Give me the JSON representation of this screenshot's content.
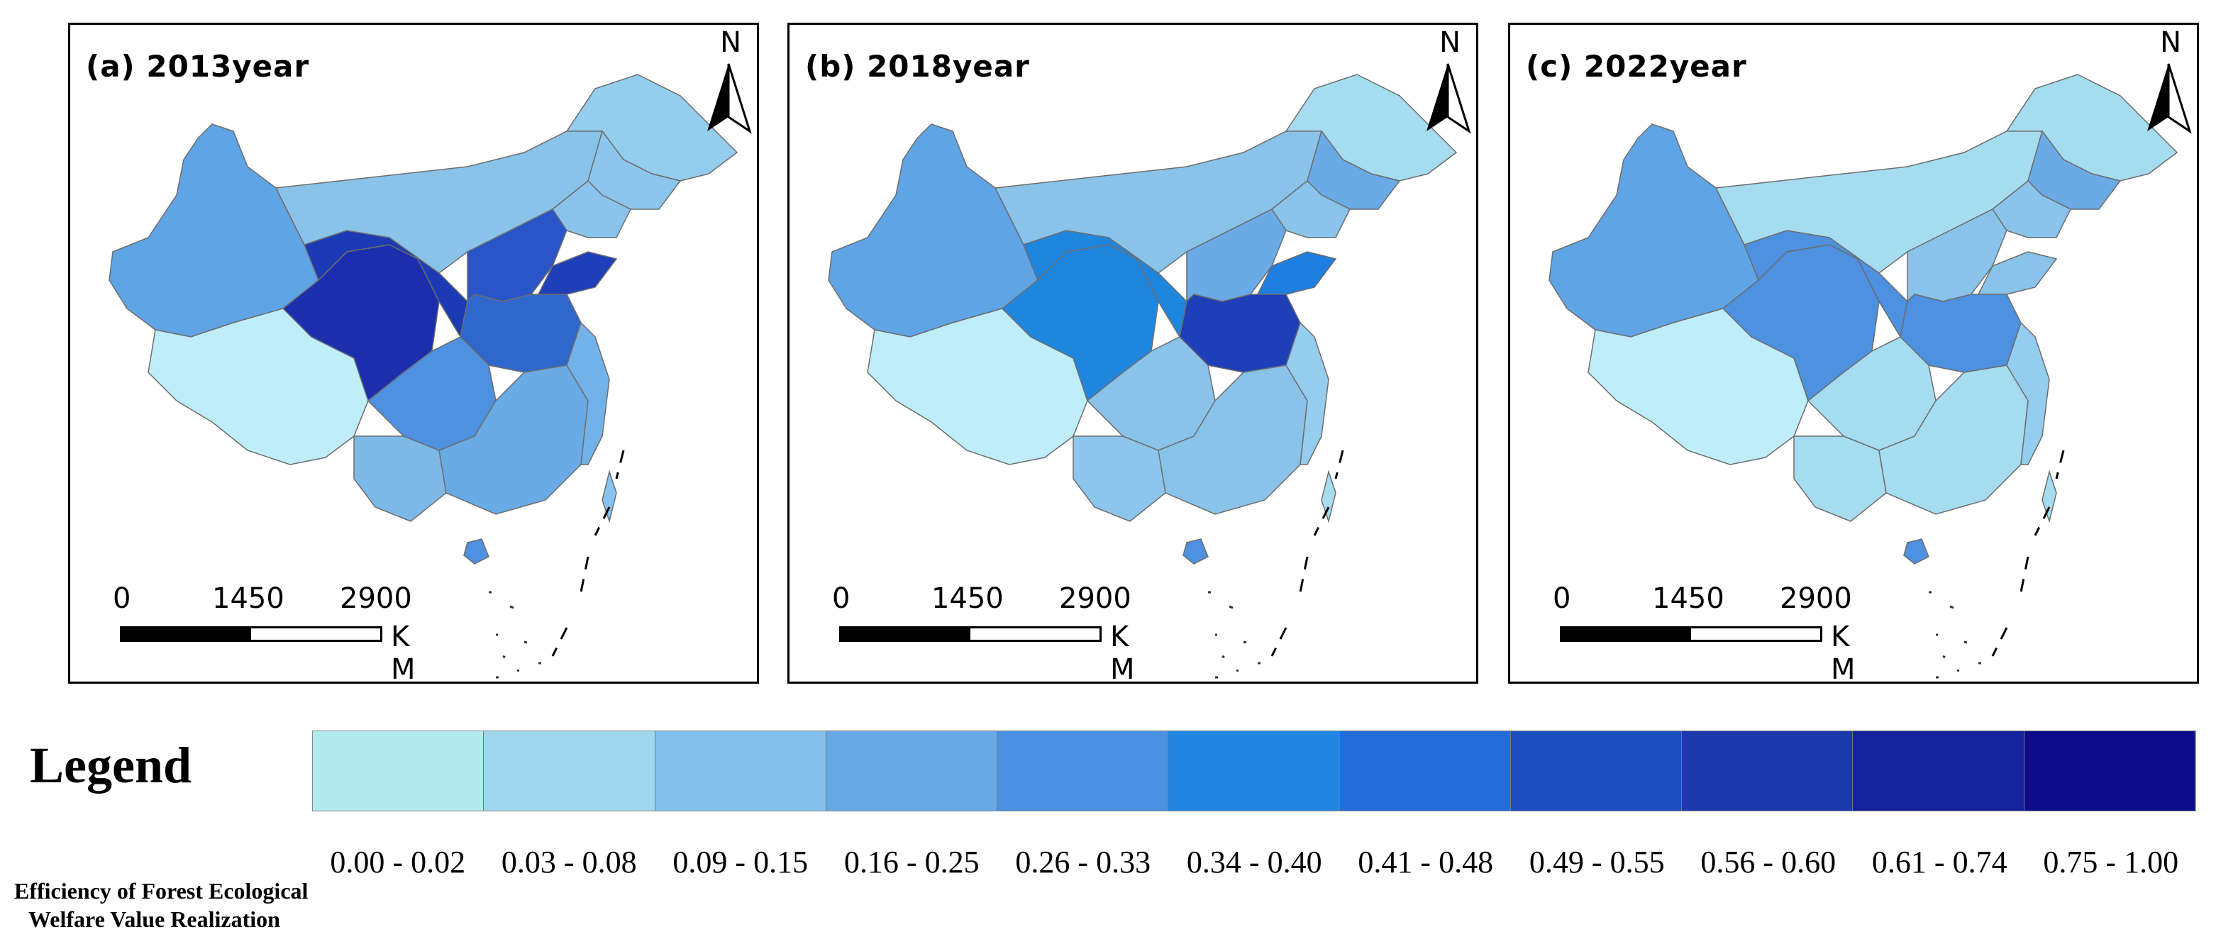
{
  "panels": [
    {
      "title": "(a) 2013year",
      "fills": {
        "xinjiang": "#5fa4e4",
        "tibet": "#bfeefa",
        "qinghai": "#1b2fae",
        "gansu": "#1b3ab4",
        "inner_mongolia": "#89c3ea",
        "heilongjiang": "#95cdee",
        "jilin": "#8dc6ec",
        "liaoning": "#8ac4ec",
        "north_block": "#2a55c8",
        "shandong": "#1f3fb8",
        "central_block": "#2f67cc",
        "sichuan": "#4d91e0",
        "yunnan": "#7cb9e8",
        "south_block": "#6aaae6",
        "east_coast": "#72b2e8",
        "taiwan": "#88c2ee",
        "hainan": "#4d91e0"
      }
    },
    {
      "title": "(b) 2018year",
      "fills": {
        "xinjiang": "#5fa4e4",
        "tibet": "#bfeefa",
        "qinghai": "#1f86e0",
        "gansu": "#1f86e0",
        "inner_mongolia": "#89c3ea",
        "heilongjiang": "#a5dcf0",
        "jilin": "#6aaae6",
        "liaoning": "#8ac4ec",
        "north_block": "#6aaae6",
        "shandong": "#1f7fe0",
        "central_block": "#1f3fb8",
        "sichuan": "#89c3ea",
        "yunnan": "#8cc6ec",
        "south_block": "#89c3ea",
        "east_coast": "#95cdee",
        "taiwan": "#a5dcf0",
        "hainan": "#4d91e0"
      }
    },
    {
      "title": "(c) 2022year",
      "fills": {
        "xinjiang": "#5fa4e4",
        "tibet": "#bfeefa",
        "qinghai": "#4d91e0",
        "gansu": "#4d91e0",
        "inner_mongolia": "#a5dcf0",
        "heilongjiang": "#a5dcf0",
        "jilin": "#6aaae6",
        "liaoning": "#8ac4ec",
        "north_block": "#89c3ea",
        "shandong": "#89c3ea",
        "central_block": "#4d91e0",
        "sichuan": "#a5dcf0",
        "yunnan": "#a5dcf0",
        "south_block": "#a5dcf0",
        "east_coast": "#95cdee",
        "taiwan": "#a5dcf0",
        "hainan": "#4d91e0"
      }
    }
  ],
  "north_label": "N",
  "scale": {
    "ticks": [
      "0",
      "1450",
      "2900"
    ],
    "unit": "K M"
  },
  "legend": {
    "title": "Legend",
    "classes": [
      {
        "label": "0.00 - 0.02",
        "color": "#b2eaee"
      },
      {
        "label": "0.03 - 0.08",
        "color": "#9fd8ee"
      },
      {
        "label": "0.09 - 0.15",
        "color": "#83c1ec"
      },
      {
        "label": "0.16 - 0.25",
        "color": "#67a8e6"
      },
      {
        "label": "0.26 - 0.33",
        "color": "#4a91e2"
      },
      {
        "label": "0.34 - 0.40",
        "color": "#2186e2"
      },
      {
        "label": "0.41 - 0.48",
        "color": "#236bd6"
      },
      {
        "label": "0.49 - 0.55",
        "color": "#1e4ebe"
      },
      {
        "label": "0.56 - 0.60",
        "color": "#1b38ac"
      },
      {
        "label": "0.61 - 0.74",
        "color": "#15249c"
      },
      {
        "label": "0.75 - 1.00",
        "color": "#0c0c8a"
      }
    ]
  },
  "caption": {
    "line1": "Efficiency of Forest Ecological",
    "line2": "Welfare Value Realization"
  }
}
